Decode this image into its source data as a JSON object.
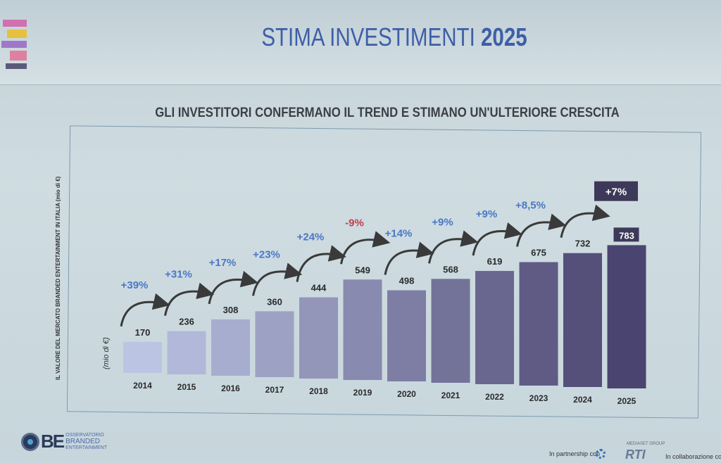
{
  "slide": {
    "title_light": "STIMA INVESTIMENTI",
    "title_bold": "2025",
    "subtitle": "GLI INVESTITORI CONFERMANO IL TREND E STIMANO UN'ULTERIORE CRESCITA",
    "footer": {
      "logo_initials": "BE",
      "logo_line1": "OSSERVATORIO",
      "logo_line2": "BRANDED",
      "logo_line3": "ENTERTAINMENT",
      "partnership": "In partnership con",
      "partner_group": "MEDIASET GROUP",
      "partner_name": "RTI",
      "collaboration": "In collaborazione con"
    }
  },
  "chart_data": {
    "type": "bar",
    "title": "STIMA INVESTIMENTI 2025",
    "ylabel": "IL VALORE DEL MERCATO BRANDED ENTERTAINMENT IN ITALIA (mio di €)",
    "unit_label": "(mio di €)",
    "categories": [
      "2014",
      "2015",
      "2016",
      "2017",
      "2018",
      "2019",
      "2020",
      "2021",
      "2022",
      "2023",
      "2024",
      "2025"
    ],
    "values": [
      170,
      236,
      308,
      360,
      444,
      549,
      498,
      568,
      619,
      675,
      732,
      783
    ],
    "growth_labels": [
      "+39%",
      "+31%",
      "+17%",
      "+23%",
      "+24%",
      "-9%",
      "+14%",
      "+9%",
      "+9%",
      "+8,5%",
      "+7%"
    ],
    "ylim": [
      0,
      800
    ],
    "grid": false,
    "highlight_category": "2025",
    "colors": {
      "bar_light": "#bcc4e3",
      "bar_dark": "#4a4470",
      "growth_positive": "#4a78c4",
      "growth_negative": "#c0404a",
      "highlight_box": "#3d3958"
    }
  }
}
